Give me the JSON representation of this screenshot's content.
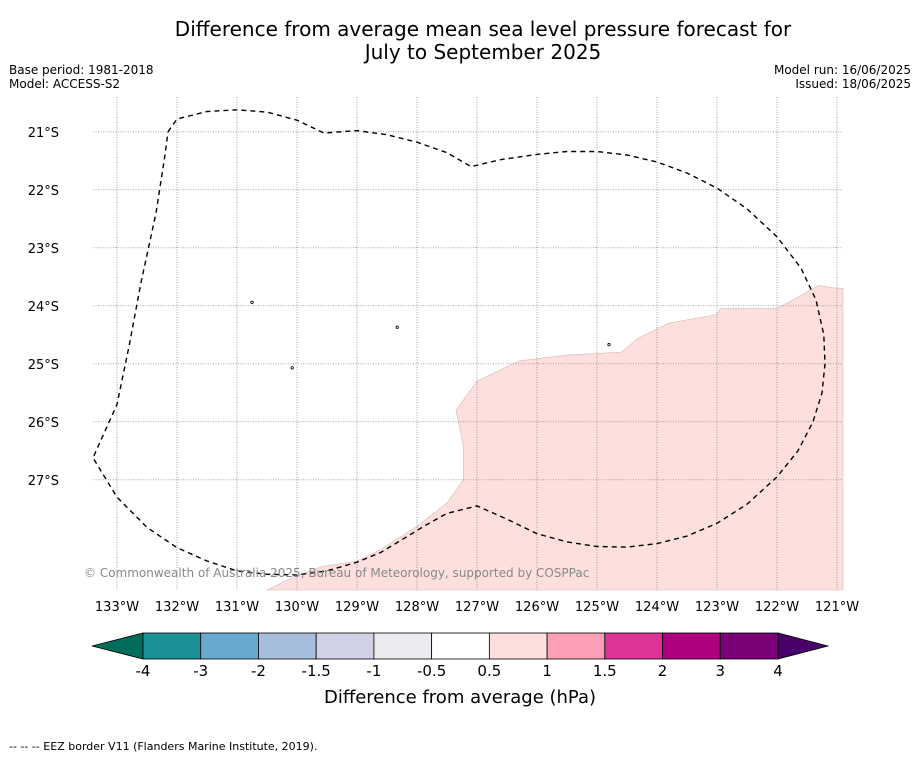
{
  "title_line1": "Difference from average mean sea level pressure forecast for",
  "title_line2": "July to September 2025",
  "base_period": "Base period: 1981-2018",
  "model": "Model: ACCESS-S2",
  "model_run": "Model run: 16/06/2025",
  "issued": "Issued: 18/06/2025",
  "copyright": "© Commonwealth of Australia 2025, Bureau of Meteorology, supported by COSPPac",
  "footer": "--  --  -- EEZ border V11 (Flanders Marine Institute, 2019).",
  "map": {
    "lon_range": [
      -133.4,
      -120.9
    ],
    "lat_range": [
      -28.9,
      -20.4
    ],
    "lat_ticks": [
      {
        "value": -21,
        "label": "21°S"
      },
      {
        "value": -22,
        "label": "22°S"
      },
      {
        "value": -23,
        "label": "23°S"
      },
      {
        "value": -24,
        "label": "24°S"
      },
      {
        "value": -25,
        "label": "25°S"
      },
      {
        "value": -26,
        "label": "26°S"
      },
      {
        "value": -27,
        "label": "27°S"
      }
    ],
    "lon_ticks": [
      {
        "value": -133,
        "label": "133°W"
      },
      {
        "value": -132,
        "label": "132°W"
      },
      {
        "value": -131,
        "label": "131°W"
      },
      {
        "value": -130,
        "label": "130°W"
      },
      {
        "value": -129,
        "label": "129°W"
      },
      {
        "value": -128,
        "label": "128°W"
      },
      {
        "value": -127,
        "label": "127°W"
      },
      {
        "value": -126,
        "label": "126°W"
      },
      {
        "value": -125,
        "label": "125°W"
      },
      {
        "value": -124,
        "label": "124°W"
      },
      {
        "value": -123,
        "label": "123°W"
      },
      {
        "value": -122,
        "label": "122°W"
      },
      {
        "value": -121,
        "label": "121°W"
      }
    ],
    "anomaly_region": {
      "category": "0.5 to 1",
      "color": "#fde0dd",
      "polygon": [
        [
          -130.5,
          -28.9
        ],
        [
          -130.3,
          -28.8
        ],
        [
          -130.1,
          -28.7
        ],
        [
          -129.6,
          -28.5
        ],
        [
          -129.0,
          -28.4
        ],
        [
          -128.6,
          -28.2
        ],
        [
          -128.0,
          -27.8
        ],
        [
          -127.5,
          -27.4
        ],
        [
          -127.23,
          -27.0
        ],
        [
          -127.23,
          -26.4
        ],
        [
          -127.35,
          -25.8
        ],
        [
          -127.0,
          -25.3
        ],
        [
          -126.3,
          -24.95
        ],
        [
          -125.5,
          -24.85
        ],
        [
          -124.6,
          -24.8
        ],
        [
          -124.3,
          -24.55
        ],
        [
          -123.8,
          -24.3
        ],
        [
          -123.0,
          -24.15
        ],
        [
          -122.95,
          -24.05
        ],
        [
          -122.0,
          -24.05
        ],
        [
          -121.3,
          -23.65
        ],
        [
          -121.0,
          -23.7
        ],
        [
          -120.9,
          -23.7
        ],
        [
          -120.9,
          -28.9
        ]
      ]
    },
    "eez_border": [
      [
        -132.15,
        -21.0
      ],
      [
        -132.0,
        -20.78
      ],
      [
        -131.5,
        -20.65
      ],
      [
        -131.0,
        -20.62
      ],
      [
        -130.5,
        -20.66
      ],
      [
        -130.0,
        -20.8
      ],
      [
        -129.55,
        -21.02
      ],
      [
        -129.0,
        -20.98
      ],
      [
        -128.5,
        -21.05
      ],
      [
        -128.0,
        -21.18
      ],
      [
        -127.5,
        -21.36
      ],
      [
        -127.1,
        -21.6
      ],
      [
        -126.6,
        -21.48
      ],
      [
        -126.0,
        -21.39
      ],
      [
        -125.5,
        -21.34
      ],
      [
        -125.0,
        -21.34
      ],
      [
        -124.5,
        -21.4
      ],
      [
        -124.0,
        -21.52
      ],
      [
        -123.5,
        -21.71
      ],
      [
        -123.0,
        -21.97
      ],
      [
        -122.5,
        -22.33
      ],
      [
        -122.0,
        -22.81
      ],
      [
        -121.6,
        -23.35
      ],
      [
        -121.35,
        -23.9
      ],
      [
        -121.22,
        -24.5
      ],
      [
        -121.2,
        -25.0
      ],
      [
        -121.25,
        -25.5
      ],
      [
        -121.4,
        -26.0
      ],
      [
        -121.65,
        -26.5
      ],
      [
        -122.0,
        -26.95
      ],
      [
        -122.5,
        -27.42
      ],
      [
        -123.0,
        -27.75
      ],
      [
        -123.5,
        -27.97
      ],
      [
        -124.0,
        -28.1
      ],
      [
        -124.5,
        -28.16
      ],
      [
        -125.0,
        -28.15
      ],
      [
        -125.5,
        -28.07
      ],
      [
        -126.0,
        -27.93
      ],
      [
        -126.5,
        -27.68
      ],
      [
        -127.0,
        -27.45
      ],
      [
        -127.5,
        -27.58
      ],
      [
        -127.85,
        -27.78
      ],
      [
        -128.2,
        -28.0
      ],
      [
        -128.6,
        -28.25
      ],
      [
        -129.0,
        -28.42
      ],
      [
        -129.5,
        -28.57
      ],
      [
        -130.0,
        -28.64
      ],
      [
        -130.5,
        -28.63
      ],
      [
        -131.0,
        -28.57
      ],
      [
        -131.5,
        -28.4
      ],
      [
        -132.0,
        -28.17
      ],
      [
        -132.5,
        -27.82
      ],
      [
        -133.0,
        -27.3
      ],
      [
        -133.4,
        -26.62
      ],
      [
        -133.0,
        -25.7
      ],
      [
        -132.8,
        -24.7
      ],
      [
        -132.6,
        -23.6
      ],
      [
        -132.35,
        -22.4
      ],
      [
        -132.2,
        -21.4
      ],
      [
        -132.15,
        -21.0
      ]
    ],
    "islands": [
      [
        -130.75,
        -23.94
      ],
      [
        -130.08,
        -25.07
      ],
      [
        -128.33,
        -24.37
      ],
      [
        -124.8,
        -24.67
      ]
    ]
  },
  "colorbar": {
    "label": "Difference from average (hPa)",
    "under_color": "#006d5b",
    "over_color": "#49006a",
    "bins": [
      {
        "color": "#1b9197",
        "from": -4,
        "to": -3
      },
      {
        "color": "#67a9cf",
        "from": -3,
        "to": -2
      },
      {
        "color": "#a6bddb",
        "from": -2,
        "to": -1.5
      },
      {
        "color": "#d0d1e6",
        "from": -1.5,
        "to": -1
      },
      {
        "color": "#ececf0",
        "from": -1,
        "to": -0.5
      },
      {
        "color": "#ffffff",
        "from": -0.5,
        "to": 0.5
      },
      {
        "color": "#fde0dd",
        "from": 0.5,
        "to": 1
      },
      {
        "color": "#fa9fb5",
        "from": 1,
        "to": 1.5
      },
      {
        "color": "#dd3497",
        "from": 1.5,
        "to": 2
      },
      {
        "color": "#ae017e",
        "from": 2,
        "to": 3
      },
      {
        "color": "#7a0177",
        "from": 3,
        "to": 4
      }
    ],
    "tick_labels": [
      "-4",
      "-3",
      "-2",
      "-1.5",
      "-1",
      "-0.5",
      "0.5",
      "1",
      "1.5",
      "2",
      "3",
      "4"
    ]
  }
}
